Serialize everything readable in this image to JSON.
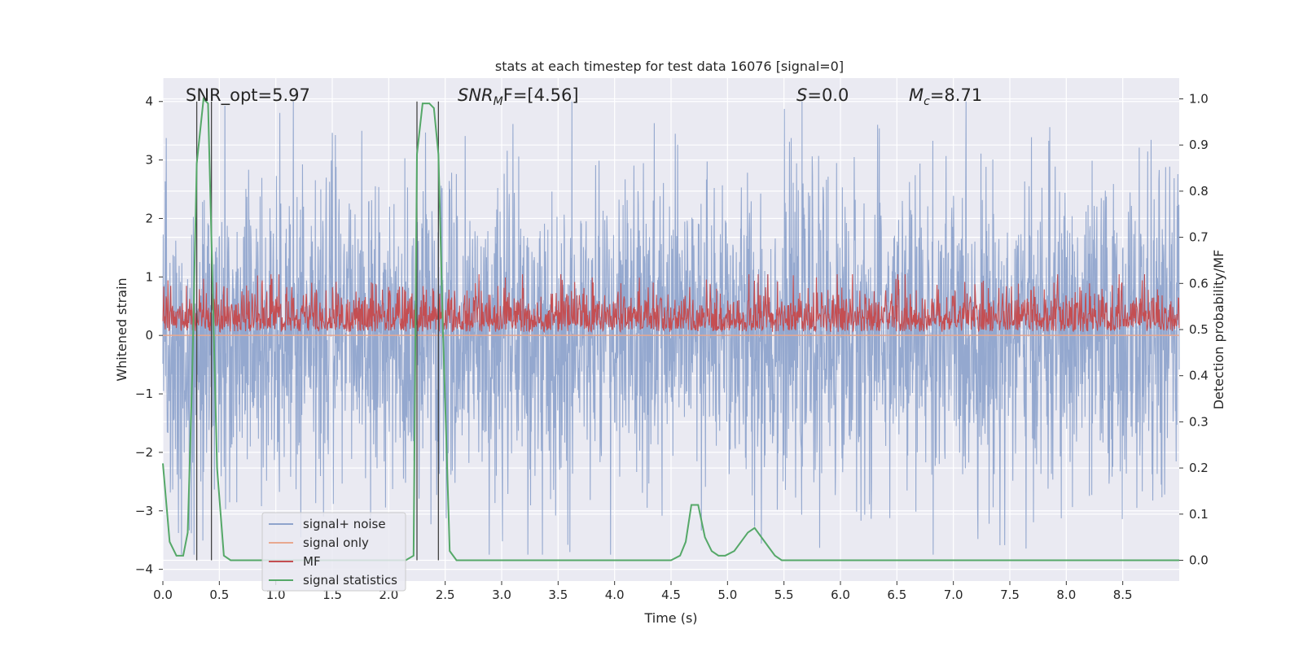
{
  "chart_data": {
    "type": "line",
    "title": "stats at each timestep for test data 16076 [signal=0]",
    "xlabel": "Time (s)",
    "ylabel": "Whitened strain",
    "y2label": "Detection probability/MF",
    "xlim": [
      0,
      9.0
    ],
    "ylim": [
      -4.2,
      4.4
    ],
    "y2lim": [
      -0.045,
      1.045
    ],
    "xticks": [
      "0.0",
      "0.5",
      "1.0",
      "1.5",
      "2.0",
      "2.5",
      "3.0",
      "3.5",
      "4.0",
      "4.5",
      "5.0",
      "5.5",
      "6.0",
      "6.5",
      "7.0",
      "7.5",
      "8.0",
      "8.5"
    ],
    "yticks": [
      "4",
      "3",
      "2",
      "1",
      "0",
      "−1",
      "−2",
      "−3",
      "−4"
    ],
    "y2ticks": [
      "1.0",
      "0.9",
      "0.8",
      "0.7",
      "0.6",
      "0.5",
      "0.4",
      "0.3",
      "0.2",
      "0.1",
      "0.0"
    ],
    "grid": true,
    "legend_position": "lower-left",
    "annotations": {
      "snr_opt": "SNR_opt=5.97",
      "snr_mf_main": "SNR",
      "snr_mf_sub": "M",
      "snr_mf_rest": "F=[4.56]",
      "s_main": "S",
      "s_rest": "=0.0",
      "mc_main": "M",
      "mc_sub": "c",
      "mc_rest": "=8.71"
    },
    "vertical_markers": [
      0.3,
      0.43,
      2.25,
      2.44
    ],
    "series": [
      {
        "name": "signal+ noise",
        "color": "#8fa4cc",
        "kind": "noise",
        "amplitude": 1.3,
        "y_axis": "left"
      },
      {
        "name": "signal only",
        "color": "#e8a88f",
        "kind": "constant",
        "value": 0.0,
        "y_axis": "left"
      },
      {
        "name": "MF",
        "color": "#c44e52",
        "kind": "noise",
        "baseline": 0.5,
        "amplitude": 0.05,
        "y_axis": "right"
      },
      {
        "name": "signal statistics",
        "color": "#55a868",
        "kind": "line",
        "y_axis": "right",
        "x": [
          0.0,
          0.06,
          0.12,
          0.18,
          0.22,
          0.26,
          0.3,
          0.36,
          0.4,
          0.44,
          0.48,
          0.54,
          0.6,
          1.0,
          1.5,
          2.0,
          2.15,
          2.22,
          2.25,
          2.3,
          2.36,
          2.4,
          2.44,
          2.48,
          2.54,
          2.6,
          3.0,
          3.5,
          4.0,
          4.5,
          4.58,
          4.63,
          4.68,
          4.74,
          4.8,
          4.86,
          4.92,
          4.98,
          5.06,
          5.12,
          5.18,
          5.24,
          5.3,
          5.36,
          5.42,
          5.48,
          5.54,
          5.6,
          6.0,
          7.0,
          8.0,
          9.0
        ],
        "y": [
          0.21,
          0.04,
          0.01,
          0.01,
          0.06,
          0.4,
          0.86,
          1.0,
          0.99,
          0.6,
          0.2,
          0.01,
          0.0,
          0.0,
          0.0,
          0.0,
          0.0,
          0.01,
          0.88,
          0.99,
          0.99,
          0.98,
          0.88,
          0.5,
          0.02,
          0.0,
          0.0,
          0.0,
          0.0,
          0.0,
          0.01,
          0.04,
          0.12,
          0.12,
          0.05,
          0.02,
          0.01,
          0.01,
          0.02,
          0.04,
          0.06,
          0.07,
          0.05,
          0.03,
          0.01,
          0.0,
          0.0,
          0.0,
          0.0,
          0.0,
          0.0,
          0.0
        ]
      }
    ]
  }
}
